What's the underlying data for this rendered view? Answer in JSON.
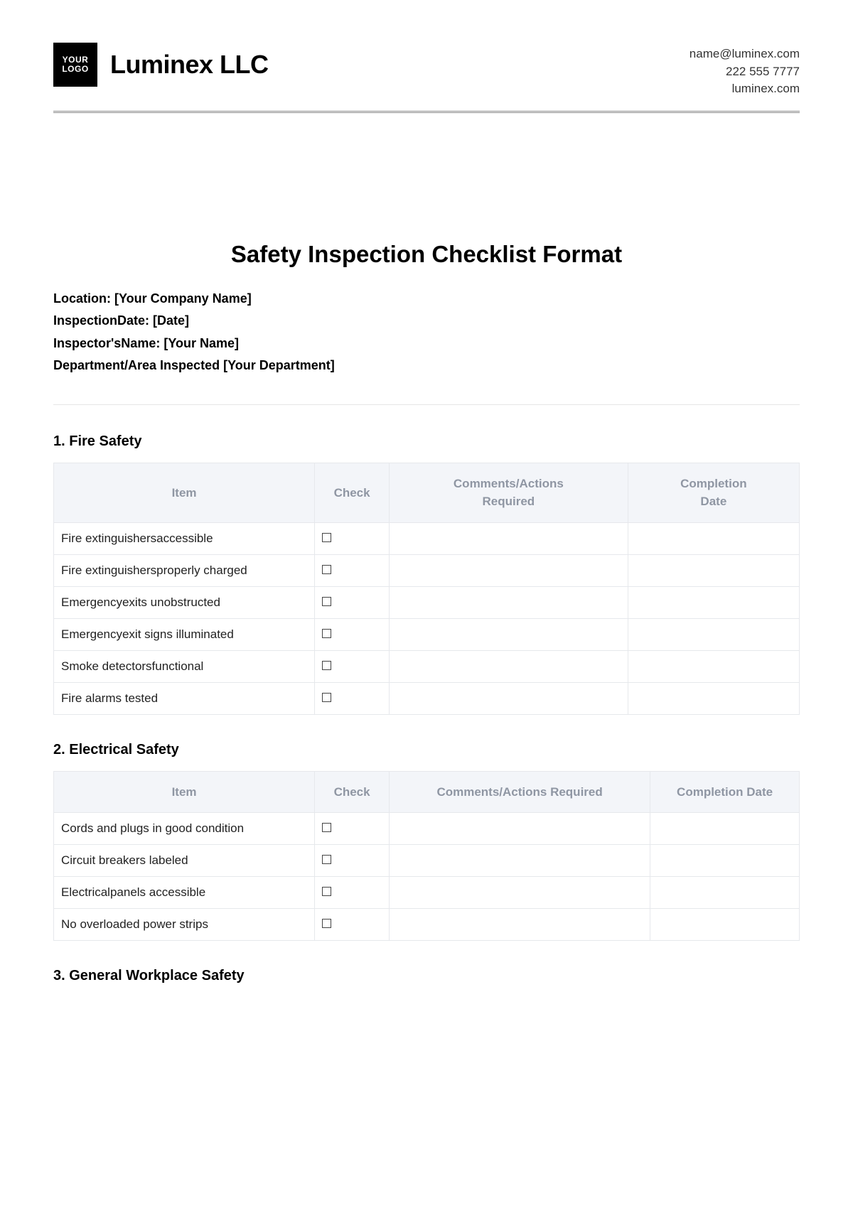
{
  "header": {
    "logo_line1": "YOUR",
    "logo_line2": "LOGO",
    "company_name": "Luminex LLC",
    "contact_email": "name@luminex.com",
    "contact_phone": "222 555 7777",
    "contact_web": "luminex.com"
  },
  "title": "Safety Inspection Checklist Format",
  "meta": {
    "location_label": "Location:",
    "location_value": "[Your Company Name]",
    "date_label": "InspectionDate:",
    "date_value": "[Date]",
    "inspector_label": "Inspector'sName:",
    "inspector_value": "[Your Name]",
    "dept_label": "Department/Area Inspected",
    "dept_value": "[Your Department]"
  },
  "table_headers": {
    "item": "Item",
    "check": "Check",
    "comments": "Comments/Actions Required",
    "completion": "Completion Date"
  },
  "sections": [
    {
      "title": "1. Fire Safety",
      "wide_headers": true,
      "rows": [
        "Fire extinguishersaccessible",
        "Fire extinguishersproperly charged",
        "Emergencyexits unobstructed",
        "Emergencyexit signs illuminated",
        "Smoke detectorsfunctional",
        "Fire alarms tested"
      ]
    },
    {
      "title": "2. Electrical Safety",
      "wide_headers": false,
      "rows": [
        "Cords and plugs in good condition",
        "Circuit breakers labeled",
        "Electricalpanels accessible",
        "No overloaded power strips"
      ]
    },
    {
      "title": "3. General Workplace Safety",
      "wide_headers": false,
      "rows": []
    }
  ],
  "colors": {
    "header_bg": "#f3f5f9",
    "header_text": "#8f96a3",
    "border": "#e6e8ec"
  }
}
